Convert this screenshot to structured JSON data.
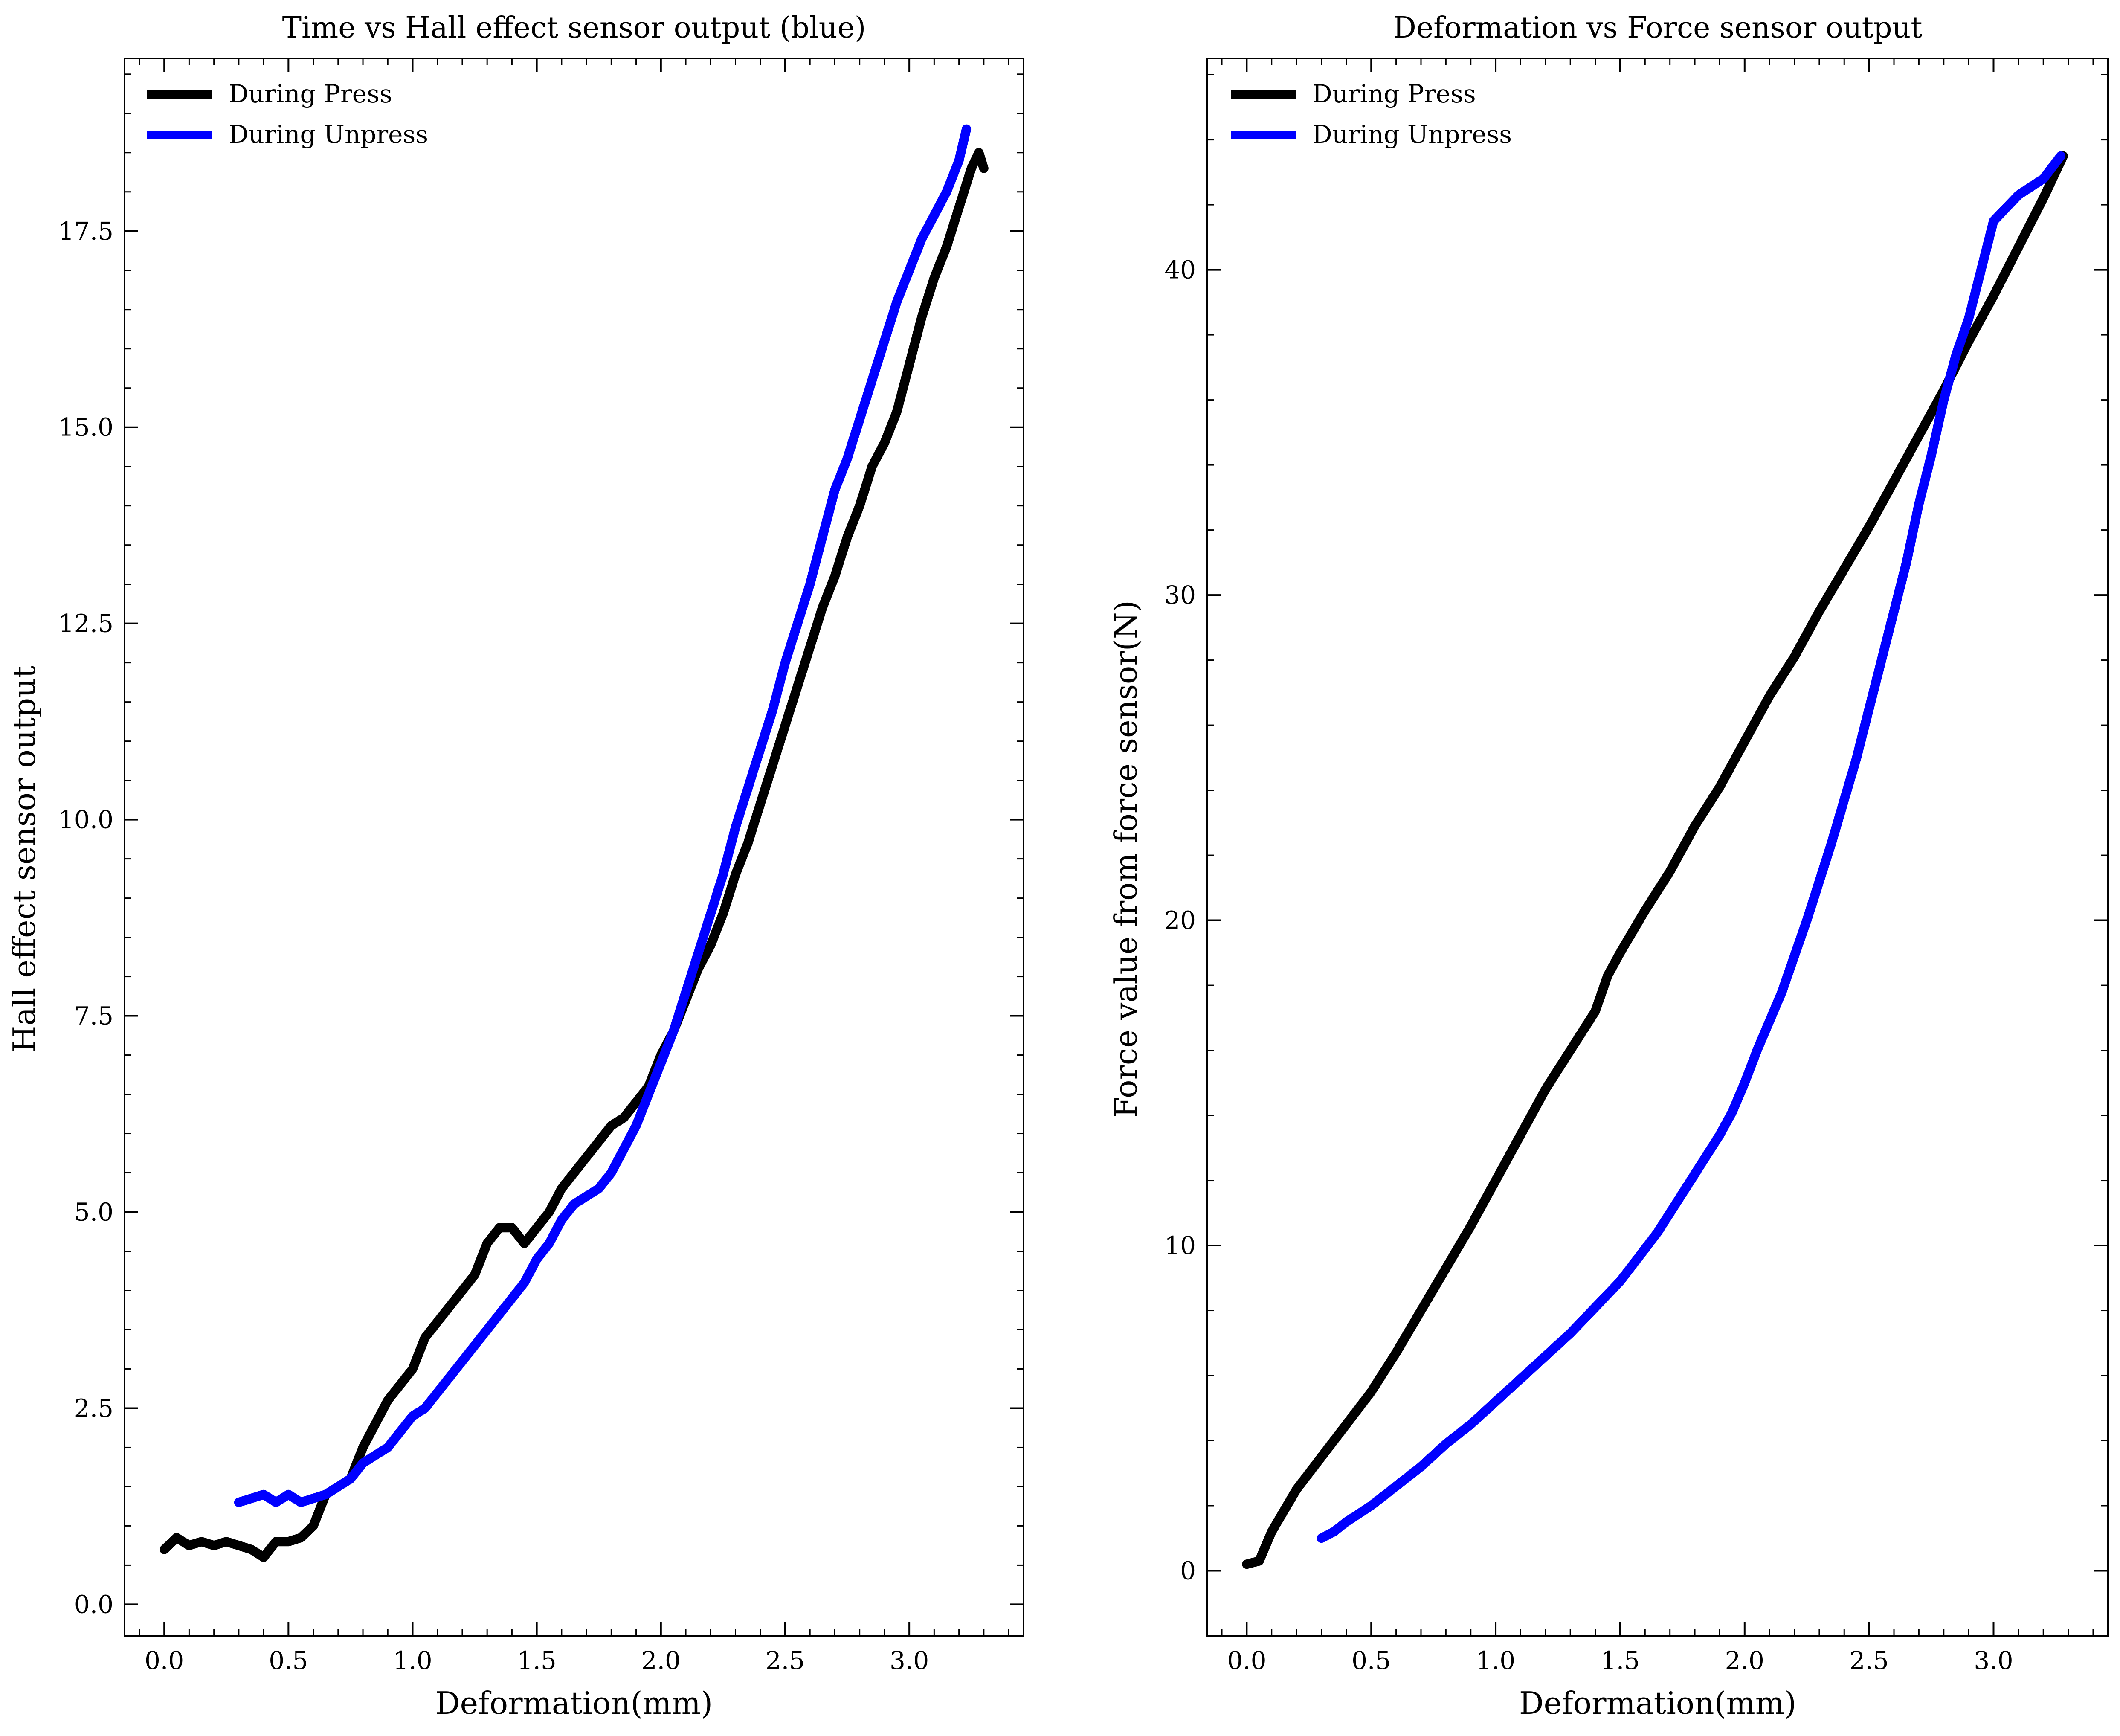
{
  "chart_data": [
    {
      "type": "line",
      "title": "Time vs Hall effect sensor output (blue)",
      "xlabel": "Deformation(mm)",
      "ylabel": "Hall effect sensor output",
      "xlim": [
        -0.16,
        3.46
      ],
      "ylim": [
        -0.4,
        19.7
      ],
      "xticks": [
        0.0,
        0.5,
        1.0,
        1.5,
        2.0,
        2.5,
        3.0
      ],
      "xtick_labels": [
        "0.0",
        "0.5",
        "1.0",
        "1.5",
        "2.0",
        "2.5",
        "3.0"
      ],
      "yticks": [
        0.0,
        2.5,
        5.0,
        7.5,
        10.0,
        12.5,
        15.0,
        17.5
      ],
      "ytick_labels": [
        "0.0",
        "2.5",
        "5.0",
        "7.5",
        "10.0",
        "12.5",
        "15.0",
        "17.5"
      ],
      "grid": false,
      "legend_position": "top-left",
      "series": [
        {
          "name": "During Press",
          "color": "#000000",
          "x": [
            0.0,
            0.05,
            0.1,
            0.15,
            0.2,
            0.25,
            0.3,
            0.35,
            0.4,
            0.45,
            0.5,
            0.55,
            0.6,
            0.65,
            0.7,
            0.75,
            0.8,
            0.85,
            0.9,
            0.95,
            1.0,
            1.05,
            1.1,
            1.15,
            1.2,
            1.25,
            1.3,
            1.35,
            1.4,
            1.45,
            1.5,
            1.55,
            1.6,
            1.65,
            1.7,
            1.75,
            1.8,
            1.85,
            1.9,
            1.95,
            2.0,
            2.05,
            2.1,
            2.15,
            2.2,
            2.25,
            2.3,
            2.35,
            2.4,
            2.45,
            2.5,
            2.55,
            2.6,
            2.65,
            2.7,
            2.75,
            2.8,
            2.85,
            2.9,
            2.95,
            3.0,
            3.05,
            3.1,
            3.15,
            3.2,
            3.25,
            3.28,
            3.3
          ],
          "y": [
            0.7,
            0.85,
            0.75,
            0.8,
            0.75,
            0.8,
            0.75,
            0.7,
            0.6,
            0.8,
            0.8,
            0.85,
            1.0,
            1.4,
            1.5,
            1.6,
            2.0,
            2.3,
            2.6,
            2.8,
            3.0,
            3.4,
            3.6,
            3.8,
            4.0,
            4.2,
            4.6,
            4.8,
            4.8,
            4.6,
            4.8,
            5.0,
            5.3,
            5.5,
            5.7,
            5.9,
            6.1,
            6.2,
            6.4,
            6.6,
            7.0,
            7.3,
            7.7,
            8.1,
            8.4,
            8.8,
            9.3,
            9.7,
            10.2,
            10.7,
            11.2,
            11.7,
            12.2,
            12.7,
            13.1,
            13.6,
            14.0,
            14.5,
            14.8,
            15.2,
            15.8,
            16.4,
            16.9,
            17.3,
            17.8,
            18.3,
            18.5,
            18.3
          ]
        },
        {
          "name": "During Unpress",
          "color": "#0000ff",
          "x": [
            3.23,
            3.2,
            3.15,
            3.1,
            3.05,
            3.0,
            2.95,
            2.9,
            2.85,
            2.8,
            2.75,
            2.7,
            2.65,
            2.6,
            2.55,
            2.5,
            2.45,
            2.4,
            2.35,
            2.3,
            2.25,
            2.2,
            2.15,
            2.1,
            2.05,
            2.0,
            1.95,
            1.9,
            1.85,
            1.8,
            1.75,
            1.7,
            1.65,
            1.6,
            1.55,
            1.5,
            1.45,
            1.4,
            1.35,
            1.3,
            1.25,
            1.2,
            1.15,
            1.1,
            1.05,
            1.0,
            0.95,
            0.9,
            0.85,
            0.8,
            0.75,
            0.7,
            0.65,
            0.6,
            0.55,
            0.5,
            0.45,
            0.4,
            0.35,
            0.3
          ],
          "y": [
            18.8,
            18.4,
            18.0,
            17.7,
            17.4,
            17.0,
            16.6,
            16.1,
            15.6,
            15.1,
            14.6,
            14.2,
            13.6,
            13.0,
            12.5,
            12.0,
            11.4,
            10.9,
            10.4,
            9.9,
            9.3,
            8.8,
            8.3,
            7.8,
            7.3,
            6.9,
            6.5,
            6.1,
            5.8,
            5.5,
            5.3,
            5.2,
            5.1,
            4.9,
            4.6,
            4.4,
            4.1,
            3.9,
            3.7,
            3.5,
            3.3,
            3.1,
            2.9,
            2.7,
            2.5,
            2.4,
            2.2,
            2.0,
            1.9,
            1.8,
            1.6,
            1.5,
            1.4,
            1.35,
            1.3,
            1.4,
            1.3,
            1.4,
            1.35,
            1.3
          ]
        }
      ]
    },
    {
      "type": "line",
      "title": "Deformation vs Force sensor output",
      "xlabel": "Deformation(mm)",
      "ylabel": "Force value from force sensor(N)",
      "xlim": [
        -0.16,
        3.46
      ],
      "ylim": [
        -2.0,
        46.5
      ],
      "xticks": [
        0.0,
        0.5,
        1.0,
        1.5,
        2.0,
        2.5,
        3.0
      ],
      "xtick_labels": [
        "0.0",
        "0.5",
        "1.0",
        "1.5",
        "2.0",
        "2.5",
        "3.0"
      ],
      "yticks": [
        0,
        10,
        20,
        30,
        40
      ],
      "ytick_labels": [
        "0",
        "10",
        "20",
        "30",
        "40"
      ],
      "grid": false,
      "legend_position": "top-left",
      "series": [
        {
          "name": "During Press",
          "color": "#000000",
          "x": [
            0.0,
            0.05,
            0.1,
            0.2,
            0.3,
            0.35,
            0.4,
            0.5,
            0.6,
            0.7,
            0.8,
            0.9,
            1.0,
            1.1,
            1.2,
            1.3,
            1.4,
            1.45,
            1.5,
            1.6,
            1.7,
            1.8,
            1.9,
            2.0,
            2.1,
            2.2,
            2.3,
            2.4,
            2.5,
            2.6,
            2.7,
            2.8,
            2.9,
            3.0,
            3.1,
            3.2,
            3.28
          ],
          "y": [
            0.2,
            0.3,
            1.2,
            2.5,
            3.5,
            4.0,
            4.5,
            5.5,
            6.7,
            8.0,
            9.3,
            10.6,
            12.0,
            13.4,
            14.8,
            16.0,
            17.2,
            18.3,
            19.0,
            20.3,
            21.5,
            22.9,
            24.1,
            25.5,
            26.9,
            28.1,
            29.5,
            30.8,
            32.1,
            33.5,
            34.9,
            36.3,
            37.8,
            39.2,
            40.7,
            42.2,
            43.5
          ]
        },
        {
          "name": "During Unpress",
          "color": "#0000ff",
          "x": [
            3.27,
            3.2,
            3.1,
            3.0,
            2.95,
            2.9,
            2.85,
            2.8,
            2.75,
            2.7,
            2.65,
            2.6,
            2.55,
            2.5,
            2.45,
            2.4,
            2.35,
            2.3,
            2.25,
            2.2,
            2.15,
            2.1,
            2.05,
            2.0,
            1.95,
            1.9,
            1.85,
            1.8,
            1.75,
            1.7,
            1.65,
            1.6,
            1.55,
            1.5,
            1.45,
            1.4,
            1.3,
            1.2,
            1.1,
            1.0,
            0.9,
            0.8,
            0.7,
            0.6,
            0.5,
            0.4,
            0.35,
            0.3
          ],
          "y": [
            43.5,
            42.8,
            42.3,
            41.5,
            40.0,
            38.5,
            37.4,
            36.0,
            34.3,
            32.8,
            31.0,
            29.5,
            28.0,
            26.5,
            25.0,
            23.7,
            22.4,
            21.2,
            20.0,
            18.9,
            17.8,
            16.9,
            16.0,
            15.0,
            14.1,
            13.4,
            12.8,
            12.2,
            11.6,
            11.0,
            10.4,
            9.9,
            9.4,
            8.9,
            8.5,
            8.1,
            7.3,
            6.6,
            5.9,
            5.2,
            4.5,
            3.9,
            3.2,
            2.6,
            2.0,
            1.5,
            1.2,
            1.0
          ]
        }
      ]
    }
  ]
}
